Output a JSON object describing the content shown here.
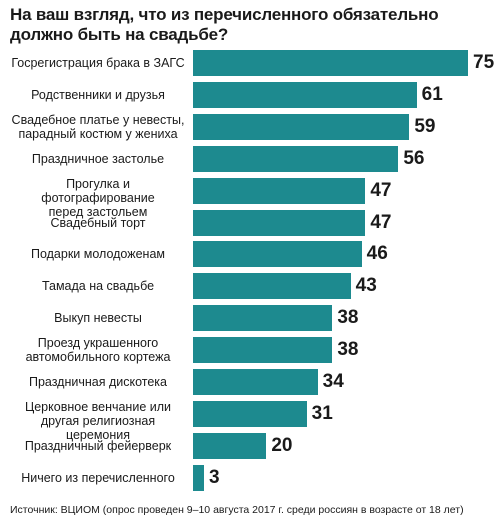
{
  "chart_data": {
    "type": "bar",
    "orientation": "horizontal",
    "title": "На ваш взгляд, что из перечисленного обязательно должно быть на свадьбе?",
    "categories": [
      "Госрегистрация брака в ЗАГС",
      "Родственники и друзья",
      "Свадебное платье у невесты,\nпарадный костюм у жениха",
      "Праздничное застолье",
      "Прогулка и фотографирование\nперед застольем",
      "Свадебный торт",
      "Подарки молодоженам",
      "Тамада на свадьбе",
      "Выкуп невесты",
      "Проезд украшенного\nавтомобильного кортежа",
      "Праздничная дискотека",
      "Церковное венчание или\nдругая религиозная церемония",
      "Праздничный фейерверк",
      "Ничего из перечисленного"
    ],
    "values": [
      75,
      61,
      59,
      56,
      47,
      47,
      46,
      43,
      38,
      38,
      34,
      31,
      20,
      3
    ],
    "xlim": [
      0,
      75
    ],
    "grid": false,
    "legend": "none",
    "bar_color": "#1d8a8f",
    "source": "Источник: ВЦИОМ (опрос проведен 9–10 августа 2017 г. среди россиян в возрасте от 18 лет)"
  }
}
